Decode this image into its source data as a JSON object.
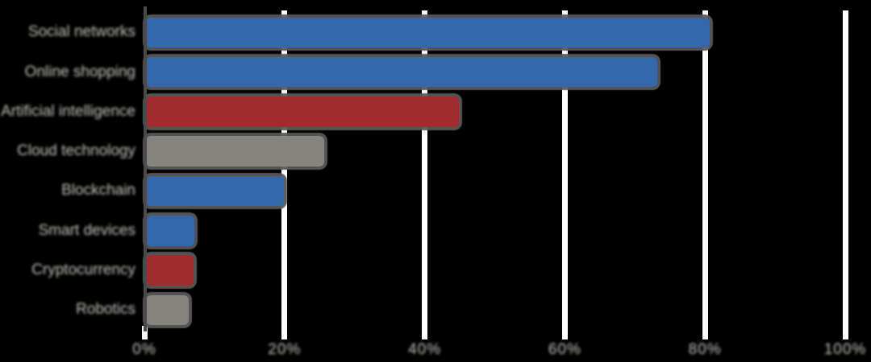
{
  "chart_data": {
    "type": "bar",
    "orientation": "horizontal",
    "title": "",
    "subtitle": "",
    "xlabel": "",
    "ylabel": "",
    "categories": [
      "Social networks",
      "Online shopping",
      "Artificial intelligence",
      "Cloud technology",
      "Blockchain",
      "Smart devices",
      "Cryptocurrency",
      "Robotics"
    ],
    "values": [
      80.4,
      72.9,
      44.6,
      25.4,
      19.7,
      6.9,
      6.8,
      6.1
    ],
    "bar_colors": [
      "#3567AC",
      "#3567AC",
      "#A02C2F",
      "#85847E",
      "#3567AC",
      "#3567AC",
      "#A02C2F",
      "#85847E"
    ],
    "xlim": [
      0,
      100
    ],
    "x_tick_values": [
      0,
      20,
      40,
      60,
      80,
      100
    ],
    "x_tick_labels": [
      "0%",
      "20%",
      "40%",
      "60%",
      "80%",
      "100%"
    ],
    "grid": "vertical-white-gridlines",
    "legend_position": "none",
    "note": "category and tick text is blurred/illegible in source image"
  },
  "style": {
    "background_color": "#000000",
    "axis_color": "#4b4b4c",
    "gridline_color": "#ffffff",
    "bar_outline_color": "#58585A",
    "label_color": "#c4c3bd",
    "blue": "#3567AC",
    "red": "#A02C2F",
    "gray": "#85847E"
  }
}
